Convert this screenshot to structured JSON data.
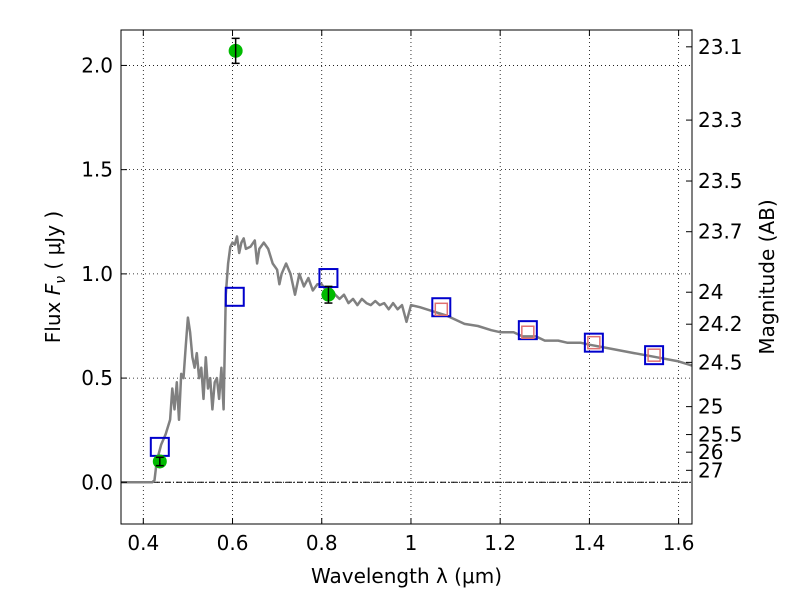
{
  "chart_data": {
    "type": "scatter",
    "xlabel": "Wavelength  λ (μm)",
    "ylabel_prefix": "Flux ",
    "ylabel_symbol": "F",
    "ylabel_subscript": "ν",
    "ylabel_suffix": "  ( μJy )",
    "y2label": "Magnitude (AB)",
    "xlim": [
      0.35,
      1.63
    ],
    "ylim": [
      -0.2,
      2.17
    ],
    "grid": true,
    "x_ticks": [
      {
        "value": 0.4,
        "label": "0.4"
      },
      {
        "value": 0.6,
        "label": "0.6"
      },
      {
        "value": 0.8,
        "label": "0.8"
      },
      {
        "value": 1.0,
        "label": "1"
      },
      {
        "value": 1.2,
        "label": "1.2"
      },
      {
        "value": 1.4,
        "label": "1.4"
      },
      {
        "value": 1.6,
        "label": "1.6"
      }
    ],
    "y_ticks": [
      {
        "value": 0.0,
        "label": "0.0"
      },
      {
        "value": 0.5,
        "label": "0.5"
      },
      {
        "value": 1.0,
        "label": "1.0"
      },
      {
        "value": 1.5,
        "label": "1.5"
      },
      {
        "value": 2.0,
        "label": "2.0"
      }
    ],
    "y2_ticks": [
      {
        "value": 23.1,
        "label": "23.1"
      },
      {
        "value": 23.3,
        "label": "23.3"
      },
      {
        "value": 23.5,
        "label": "23.5"
      },
      {
        "value": 23.7,
        "label": "23.7"
      },
      {
        "value": 24.0,
        "label": "24"
      },
      {
        "value": 24.2,
        "label": "24.2"
      },
      {
        "value": 24.5,
        "label": "24.5"
      },
      {
        "value": 25.0,
        "label": "25"
      },
      {
        "value": 25.5,
        "label": "25.5"
      },
      {
        "value": 26.0,
        "label": "26"
      },
      {
        "value": 27.0,
        "label": "27"
      }
    ],
    "series": [
      {
        "kind": "line",
        "color": "#808080",
        "x": [
          0.35,
          0.42,
          0.425,
          0.43,
          0.44,
          0.45,
          0.46,
          0.465,
          0.47,
          0.475,
          0.48,
          0.485,
          0.49,
          0.495,
          0.5,
          0.505,
          0.51,
          0.515,
          0.52,
          0.525,
          0.53,
          0.535,
          0.54,
          0.545,
          0.55,
          0.555,
          0.56,
          0.565,
          0.57,
          0.575,
          0.58,
          0.585,
          0.59,
          0.595,
          0.6,
          0.605,
          0.61,
          0.615,
          0.62,
          0.625,
          0.63,
          0.64,
          0.65,
          0.655,
          0.66,
          0.67,
          0.68,
          0.69,
          0.7,
          0.705,
          0.71,
          0.72,
          0.73,
          0.74,
          0.75,
          0.76,
          0.77,
          0.78,
          0.79,
          0.8,
          0.81,
          0.82,
          0.83,
          0.84,
          0.85,
          0.86,
          0.87,
          0.88,
          0.89,
          0.9,
          0.91,
          0.92,
          0.93,
          0.94,
          0.95,
          0.96,
          0.97,
          0.98,
          0.99,
          1.0,
          1.02,
          1.05,
          1.08,
          1.1,
          1.12,
          1.15,
          1.18,
          1.2,
          1.23,
          1.25,
          1.28,
          1.3,
          1.33,
          1.35,
          1.38,
          1.4,
          1.45,
          1.5,
          1.55,
          1.6,
          1.63
        ],
        "y": [
          0.0,
          0.0,
          0.01,
          0.1,
          0.18,
          0.23,
          0.3,
          0.45,
          0.35,
          0.48,
          0.3,
          0.52,
          0.5,
          0.65,
          0.79,
          0.72,
          0.6,
          0.55,
          0.62,
          0.5,
          0.55,
          0.4,
          0.6,
          0.45,
          0.5,
          0.35,
          0.48,
          0.5,
          0.4,
          0.55,
          0.35,
          0.9,
          1.05,
          1.13,
          1.15,
          1.14,
          1.18,
          1.1,
          1.15,
          1.17,
          1.12,
          1.13,
          1.16,
          1.05,
          1.12,
          1.15,
          1.12,
          1.05,
          1.02,
          0.95,
          1.0,
          1.05,
          1.0,
          0.9,
          1.0,
          0.94,
          0.98,
          0.92,
          0.95,
          0.95,
          0.92,
          0.93,
          0.9,
          0.88,
          0.9,
          0.86,
          0.88,
          0.85,
          0.88,
          0.86,
          0.85,
          0.87,
          0.85,
          0.86,
          0.83,
          0.86,
          0.83,
          0.85,
          0.77,
          0.85,
          0.84,
          0.82,
          0.8,
          0.78,
          0.76,
          0.75,
          0.73,
          0.72,
          0.72,
          0.7,
          0.7,
          0.68,
          0.68,
          0.67,
          0.67,
          0.66,
          0.64,
          0.62,
          0.6,
          0.58,
          0.56
        ]
      },
      {
        "kind": "open-square",
        "color": "#0000cc",
        "x": [
          0.437,
          0.605,
          0.815,
          1.068,
          1.262,
          1.41,
          1.545
        ],
        "y": [
          0.17,
          0.89,
          0.98,
          0.84,
          0.73,
          0.67,
          0.61
        ]
      },
      {
        "kind": "open-square",
        "color": "#e07070",
        "x": [
          1.068,
          1.262,
          1.41,
          1.545
        ],
        "y": [
          0.83,
          0.72,
          0.67,
          0.61
        ]
      },
      {
        "kind": "filled-circle",
        "color": "#00bb00",
        "x": [
          0.437,
          0.607,
          0.815
        ],
        "y": [
          0.1,
          2.07,
          0.9
        ],
        "yerr": [
          0.02,
          0.06,
          0.04
        ]
      }
    ]
  }
}
